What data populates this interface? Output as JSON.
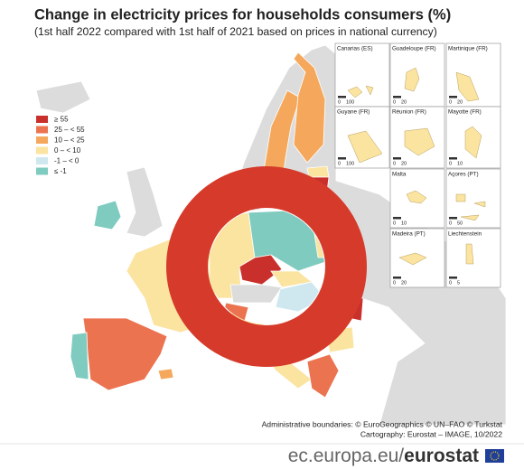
{
  "header": {
    "title": "Change in electricity prices for households consumers (%)",
    "subtitle": "(1st half 2022 compared with 1st half of 2021 based on prices in national currency)"
  },
  "legend": {
    "items": [
      {
        "label": "≥ 55",
        "color": "#c9302c"
      },
      {
        "label": "25 – < 55",
        "color": "#ec7350"
      },
      {
        "label": "10 – < 25",
        "color": "#f5a85c"
      },
      {
        "label": "0 – < 10",
        "color": "#fbe3a0"
      },
      {
        "label": "-1 – < 0",
        "color": "#cfe8f0"
      },
      {
        "label": "≤ -1",
        "color": "#7fcbbf"
      }
    ]
  },
  "insets": [
    {
      "label": "Canarias (ES)",
      "scale": [
        0,
        100
      ]
    },
    {
      "label": "Guadeloupe (FR)",
      "scale": [
        0,
        20
      ]
    },
    {
      "label": "Martinique (FR)",
      "scale": [
        0,
        20
      ]
    },
    {
      "label": "Guyane (FR)",
      "scale": [
        0,
        100
      ]
    },
    {
      "label": "Réunion (FR)",
      "scale": [
        0,
        20
      ]
    },
    {
      "label": "Mayotte (FR)",
      "scale": [
        0,
        10
      ]
    },
    {
      "label": "Malta",
      "scale": [
        0,
        10
      ]
    },
    {
      "label": "Açores (PT)",
      "scale": [
        0,
        50
      ]
    },
    {
      "label": "Madeira (PT)",
      "scale": [
        0,
        20
      ]
    },
    {
      "label": "Liechtenstein",
      "scale": [
        0,
        5
      ]
    }
  ],
  "credits": [
    "Administrative boundaries: © EuroGeographics © UN–FAO © Turkstat",
    "Cartography: Eurostat – IMAGE, 10/2022"
  ],
  "footer": {
    "url": "ec.europa.eu/",
    "brand": "eurostat"
  }
}
